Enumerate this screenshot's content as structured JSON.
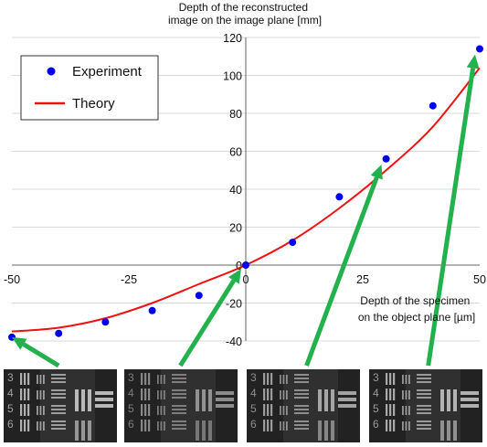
{
  "chart_data": {
    "type": "scatter",
    "x_axis_label_lines": [
      "Depth of the specimen",
      "on the object plane  [µm]"
    ],
    "y_axis_label_lines": [
      "Depth of the reconstructed",
      "image on the image plane [mm]"
    ],
    "xlim": [
      -50,
      50
    ],
    "ylim": [
      -40,
      120
    ],
    "x_ticks": [
      "-50",
      "-25",
      "0",
      "25",
      "50"
    ],
    "x_tick_values": [
      -50,
      -25,
      0,
      25,
      50
    ],
    "y_ticks": [
      "-40",
      "-20",
      "0",
      "20",
      "40",
      "60",
      "80",
      "100",
      "120"
    ],
    "y_tick_values": [
      -40,
      -20,
      0,
      20,
      40,
      60,
      80,
      100,
      120
    ],
    "grid": {
      "horizontal": true,
      "vertical": false
    },
    "legend_position": "top-left",
    "series": [
      {
        "name": "Experiment",
        "kind": "markers",
        "color": "#0000ee",
        "x": [
          -50,
          -40,
          -30,
          -20,
          -10,
          0,
          10,
          20,
          30,
          40,
          50
        ],
        "y": [
          -38,
          -36,
          -30,
          -24,
          -16,
          0,
          12,
          36,
          56,
          84,
          114
        ]
      },
      {
        "name": "Theory",
        "kind": "line",
        "color": "#ee1111",
        "x": [
          -50,
          -40,
          -30,
          -20,
          -10,
          0,
          10,
          20,
          30,
          40,
          50
        ],
        "y": [
          -35,
          -33,
          -28,
          -20,
          -10,
          0,
          13,
          30,
          50,
          73,
          104
        ]
      }
    ],
    "annotation_arrows": [
      {
        "from_x": -40,
        "from_y": -53,
        "to_x": -50,
        "to_y": -38
      },
      {
        "from_x": -14,
        "from_y": -53,
        "to_x": -1,
        "to_y": -2
      },
      {
        "from_x": 13,
        "from_y": -53,
        "to_x": 29,
        "to_y": 53
      },
      {
        "from_x": 39,
        "from_y": -53,
        "to_x": 49,
        "to_y": 111
      }
    ]
  },
  "thumbnails": {
    "group_labels": [
      "3",
      "4",
      "5",
      "6"
    ],
    "count": 4
  }
}
